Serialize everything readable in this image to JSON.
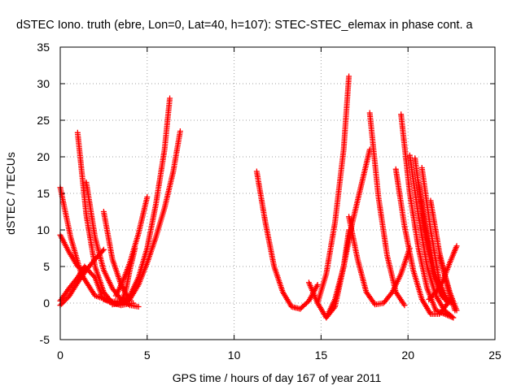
{
  "chart_data": {
    "type": "scatter",
    "title": "dSTEC Iono. truth (ebre, Lon=0, Lat=40, h=107): STEC-STEC_elemax in phase cont. a",
    "xlabel": "GPS time / hours of day 167 of year 2011",
    "ylabel": "dSTEC  / TECUs",
    "xlim": [
      0,
      25
    ],
    "ylim": [
      -5,
      35
    ],
    "xticks": [
      0,
      5,
      10,
      15,
      20,
      25
    ],
    "yticks": [
      -5,
      0,
      5,
      10,
      15,
      20,
      25,
      30,
      35
    ],
    "grid": true,
    "marker": "+",
    "color": "#ff0000",
    "series": [
      {
        "x": [
          0.0,
          0.5,
          1.0,
          1.5,
          2.0,
          2.5
        ],
        "y": [
          -0.3,
          0.9,
          2.8,
          4.5,
          6.0,
          7.3
        ]
      },
      {
        "x": [
          0.0,
          0.5,
          1.0,
          1.3
        ],
        "y": [
          9.3,
          7.0,
          5.0,
          4.5
        ]
      },
      {
        "x": [
          0.0,
          0.6,
          1.2,
          2.0,
          3.0,
          3.5
        ],
        "y": [
          15.8,
          9.0,
          4.0,
          1.0,
          0.2,
          0.3
        ]
      },
      {
        "x": [
          0.0,
          0.5,
          1.0,
          1.4,
          2.0,
          2.4
        ],
        "y": [
          0.3,
          2.0,
          3.5,
          5.0,
          3.5,
          1.0
        ]
      },
      {
        "x": [
          1.0,
          1.5,
          2.0,
          2.5,
          3.0,
          3.5,
          4.2
        ],
        "y": [
          23.3,
          12.0,
          5.0,
          1.5,
          0.0,
          -0.3,
          0.0
        ]
      },
      {
        "x": [
          1.5,
          2.0,
          2.5,
          3.0,
          3.5,
          4.0,
          4.5
        ],
        "y": [
          16.5,
          9.0,
          4.5,
          2.0,
          0.5,
          -0.3,
          -0.5
        ]
      },
      {
        "x": [
          2.5,
          3.0,
          3.5,
          4.0
        ],
        "y": [
          12.5,
          6.0,
          2.5,
          0.3
        ]
      },
      {
        "x": [
          2.5,
          3.0,
          3.5,
          4.0,
          4.5,
          5.0,
          5.5,
          6.0,
          6.3
        ],
        "y": [
          0.5,
          0.0,
          0.0,
          1.0,
          3.5,
          7.5,
          13.5,
          21.0,
          28.0
        ]
      },
      {
        "x": [
          3.0,
          3.5,
          4.0,
          4.5,
          5.0,
          5.5,
          6.0,
          6.5,
          6.9
        ],
        "y": [
          -0.2,
          0.0,
          0.5,
          2.5,
          5.5,
          9.0,
          13.0,
          18.0,
          23.5
        ]
      },
      {
        "x": [
          3.2,
          3.6,
          4.0,
          4.5,
          5.0
        ],
        "y": [
          1.0,
          3.0,
          5.5,
          9.5,
          14.5
        ]
      },
      {
        "x": [
          3.5,
          3.8,
          4.0,
          4.3
        ],
        "y": [
          0.0,
          2.0,
          4.5,
          7.5
        ]
      },
      {
        "x": [
          11.3,
          11.8,
          12.3,
          12.8,
          13.3,
          13.8,
          14.3,
          14.8
        ],
        "y": [
          18.0,
          11.0,
          5.0,
          1.5,
          -0.5,
          -0.8,
          0.3,
          2.5
        ]
      },
      {
        "x": [
          14.3,
          14.8,
          15.3,
          15.8,
          16.3,
          16.6
        ],
        "y": [
          2.8,
          0.0,
          -2.0,
          -0.5,
          5.0,
          10.0
        ]
      },
      {
        "x": [
          14.8,
          15.3,
          15.8,
          16.3,
          16.6
        ],
        "y": [
          0.0,
          4.0,
          11.0,
          21.0,
          31.0
        ]
      },
      {
        "x": [
          15.3,
          15.8,
          16.3,
          16.8,
          17.3,
          17.8
        ],
        "y": [
          -2.0,
          0.5,
          5.0,
          11.0,
          16.0,
          21.0
        ]
      },
      {
        "x": [
          16.6,
          17.1,
          17.6,
          18.1,
          18.6,
          19.1,
          19.6,
          20.1
        ],
        "y": [
          11.8,
          6.0,
          1.5,
          -0.2,
          0.0,
          1.5,
          4.0,
          7.5
        ]
      },
      {
        "x": [
          17.8,
          18.3,
          18.8,
          19.3,
          19.8
        ],
        "y": [
          26.0,
          14.5,
          6.5,
          1.5,
          -0.3
        ]
      },
      {
        "x": [
          19.3,
          19.8,
          20.3,
          20.8,
          21.3,
          21.8,
          22.3
        ],
        "y": [
          18.3,
          10.5,
          4.5,
          0.5,
          -1.5,
          -1.5,
          0.0
        ]
      },
      {
        "x": [
          19.6,
          20.1,
          20.6,
          21.1,
          21.6,
          22.1,
          22.6
        ],
        "y": [
          25.8,
          15.0,
          7.5,
          2.0,
          -1.0,
          -1.5,
          -2.0
        ]
      },
      {
        "x": [
          20.1,
          20.6,
          21.1,
          21.6,
          22.1,
          22.6
        ],
        "y": [
          20.2,
          12.0,
          5.0,
          1.0,
          -1.0,
          -2.0
        ]
      },
      {
        "x": [
          20.4,
          20.9,
          21.4,
          21.9,
          22.4
        ],
        "y": [
          19.8,
          11.0,
          4.5,
          1.0,
          0.5
        ]
      },
      {
        "x": [
          20.6,
          21.1,
          21.6,
          22.1,
          22.5
        ],
        "y": [
          16.5,
          9.0,
          3.5,
          0.5,
          0.0
        ]
      },
      {
        "x": [
          20.8,
          21.3,
          21.8,
          22.3
        ],
        "y": [
          18.5,
          10.0,
          3.0,
          0.0
        ]
      },
      {
        "x": [
          21.3,
          21.8,
          22.3,
          22.7
        ],
        "y": [
          14.0,
          7.0,
          2.0,
          -1.0
        ]
      },
      {
        "x": [
          21.8,
          22.1,
          22.4,
          22.8
        ],
        "y": [
          6.5,
          4.0,
          1.5,
          -1.0
        ]
      },
      {
        "x": [
          21.2,
          21.6,
          22.0,
          22.4,
          22.8
        ],
        "y": [
          0.5,
          1.5,
          3.0,
          5.5,
          7.8
        ]
      }
    ]
  }
}
